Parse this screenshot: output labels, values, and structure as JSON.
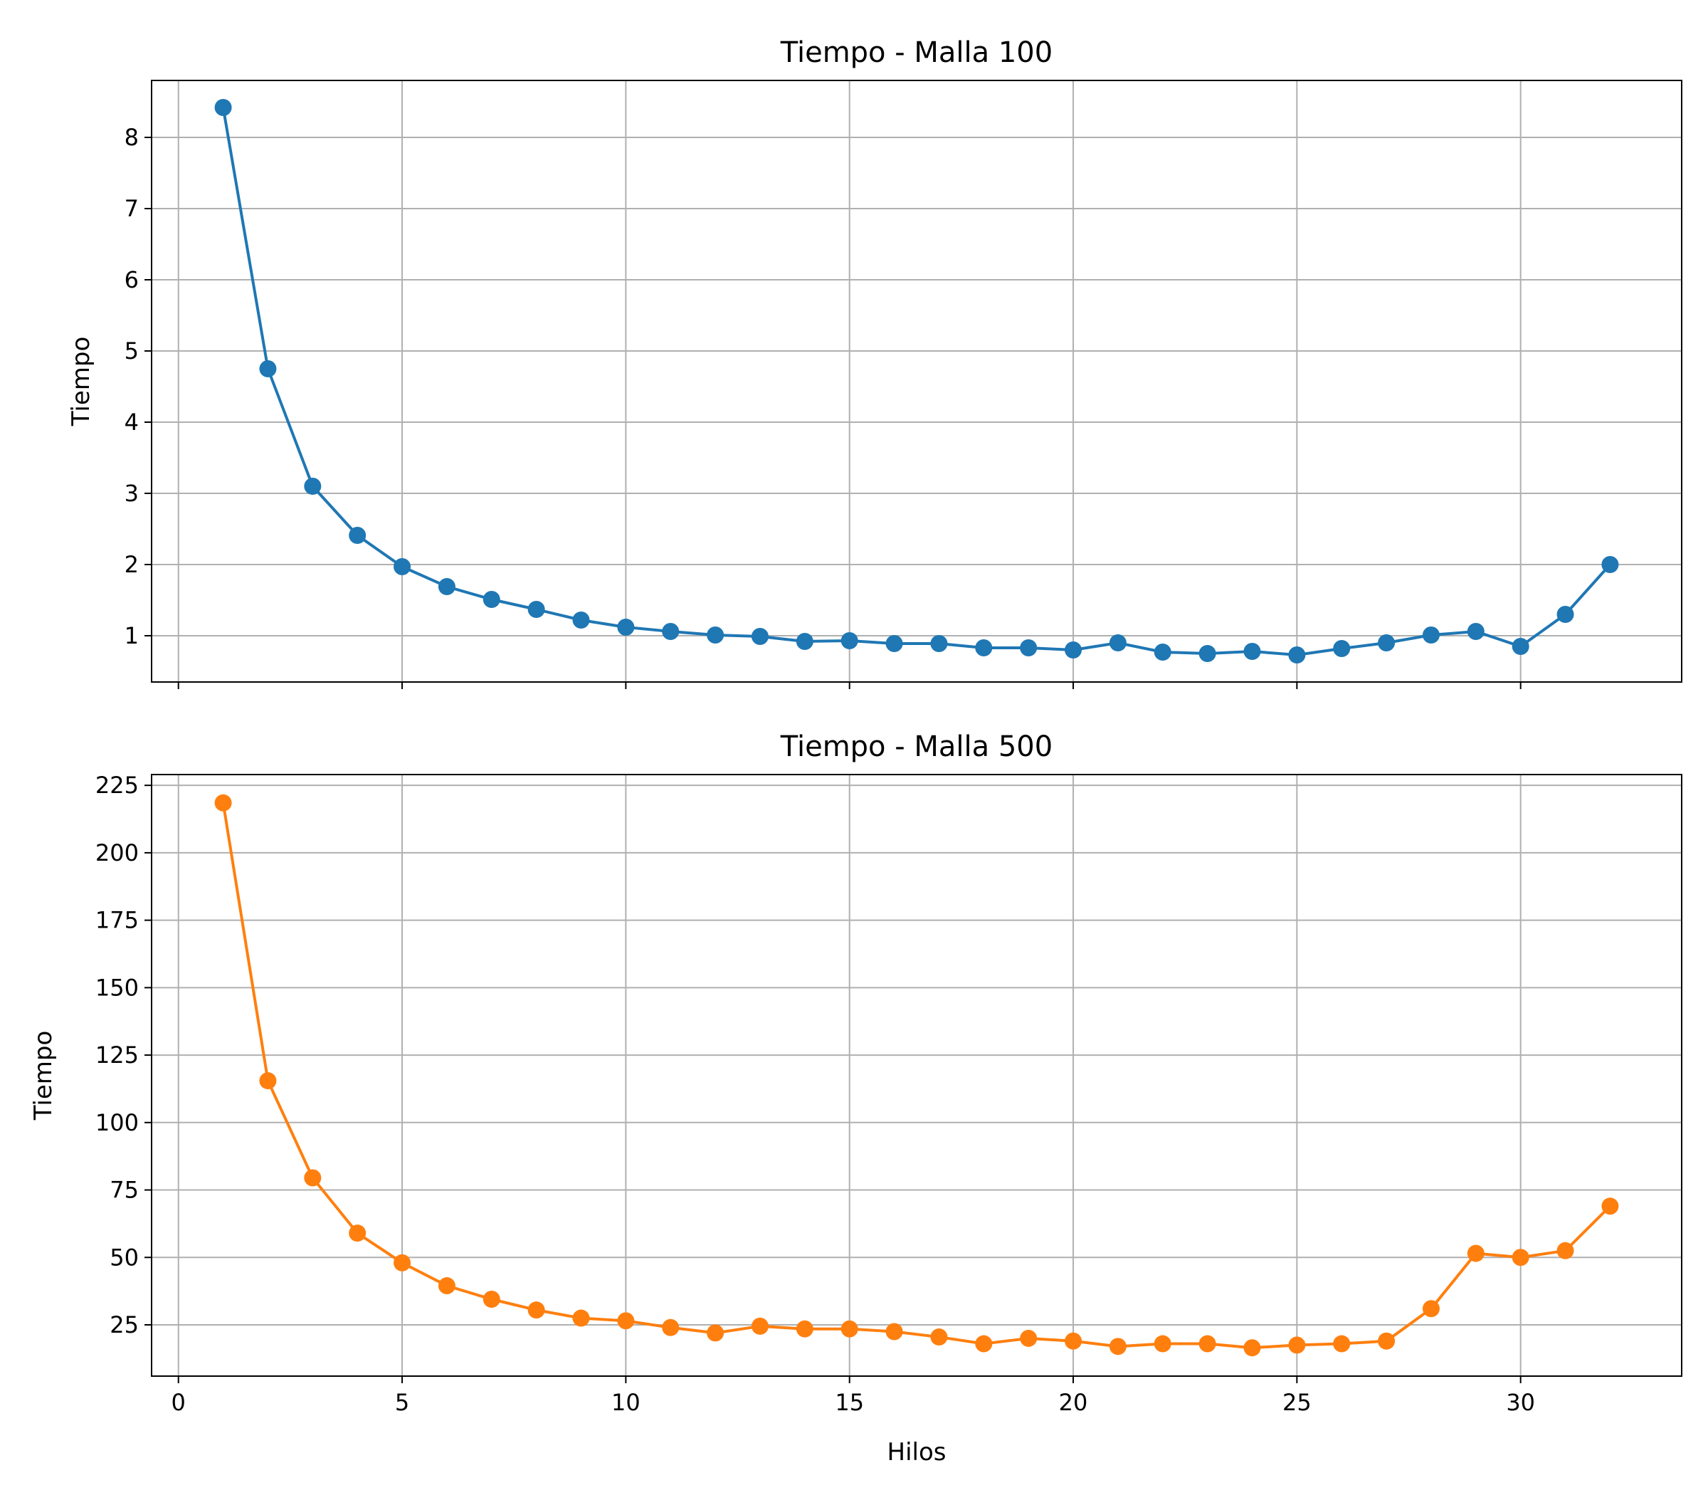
{
  "chart_data": [
    {
      "type": "line",
      "title": "Tiempo - Malla 100",
      "xlabel": "",
      "ylabel": "Tiempo",
      "xlim": [
        -0.6,
        33.6
      ],
      "ylim": [
        0.35,
        8.8
      ],
      "xticks": [
        0,
        5,
        10,
        15,
        20,
        25,
        30
      ],
      "xtick_labels": [
        "",
        "",
        "",
        "",
        "",
        "",
        ""
      ],
      "yticks": [
        1,
        2,
        3,
        4,
        5,
        6,
        7,
        8
      ],
      "ytick_labels": [
        "1",
        "2",
        "3",
        "4",
        "5",
        "6",
        "7",
        "8"
      ],
      "grid": true,
      "x": [
        1,
        2,
        3,
        4,
        5,
        6,
        7,
        8,
        9,
        10,
        11,
        12,
        13,
        14,
        15,
        16,
        17,
        18,
        19,
        20,
        21,
        22,
        23,
        24,
        25,
        26,
        27,
        28,
        29,
        30,
        31,
        32
      ],
      "series": [
        {
          "color": "#1f77b4",
          "marker": "circle",
          "values": [
            8.42,
            4.75,
            3.1,
            2.41,
            1.97,
            1.69,
            1.51,
            1.37,
            1.22,
            1.12,
            1.06,
            1.01,
            0.99,
            0.92,
            0.93,
            0.89,
            0.89,
            0.83,
            0.83,
            0.8,
            0.9,
            0.77,
            0.75,
            0.78,
            0.73,
            0.82,
            0.9,
            1.01,
            1.06,
            0.85,
            1.3,
            2.0
          ]
        }
      ]
    },
    {
      "type": "line",
      "title": "Tiempo - Malla 500",
      "xlabel": "Hilos",
      "ylabel": "Tiempo",
      "xlim": [
        -0.6,
        33.6
      ],
      "ylim": [
        6,
        229
      ],
      "xticks": [
        0,
        5,
        10,
        15,
        20,
        25,
        30
      ],
      "xtick_labels": [
        "0",
        "5",
        "10",
        "15",
        "20",
        "25",
        "30"
      ],
      "yticks": [
        25,
        50,
        75,
        100,
        125,
        150,
        175,
        200,
        225
      ],
      "ytick_labels": [
        "25",
        "50",
        "75",
        "100",
        "125",
        "150",
        "175",
        "200",
        "225"
      ],
      "grid": true,
      "x": [
        1,
        2,
        3,
        4,
        5,
        6,
        7,
        8,
        9,
        10,
        11,
        12,
        13,
        14,
        15,
        16,
        17,
        18,
        19,
        20,
        21,
        22,
        23,
        24,
        25,
        26,
        27,
        28,
        29,
        30,
        31,
        32
      ],
      "series": [
        {
          "color": "#ff7f0e",
          "marker": "circle",
          "values": [
            218.5,
            115.5,
            79.5,
            59.0,
            48.0,
            39.5,
            34.5,
            30.5,
            27.5,
            26.5,
            24.0,
            22.0,
            24.5,
            23.5,
            23.5,
            22.5,
            20.5,
            18.0,
            20.0,
            19.0,
            17.0,
            18.0,
            18.0,
            16.5,
            17.5,
            18.0,
            19.0,
            31.0,
            51.5,
            50.0,
            52.5,
            69.0
          ]
        }
      ]
    }
  ]
}
